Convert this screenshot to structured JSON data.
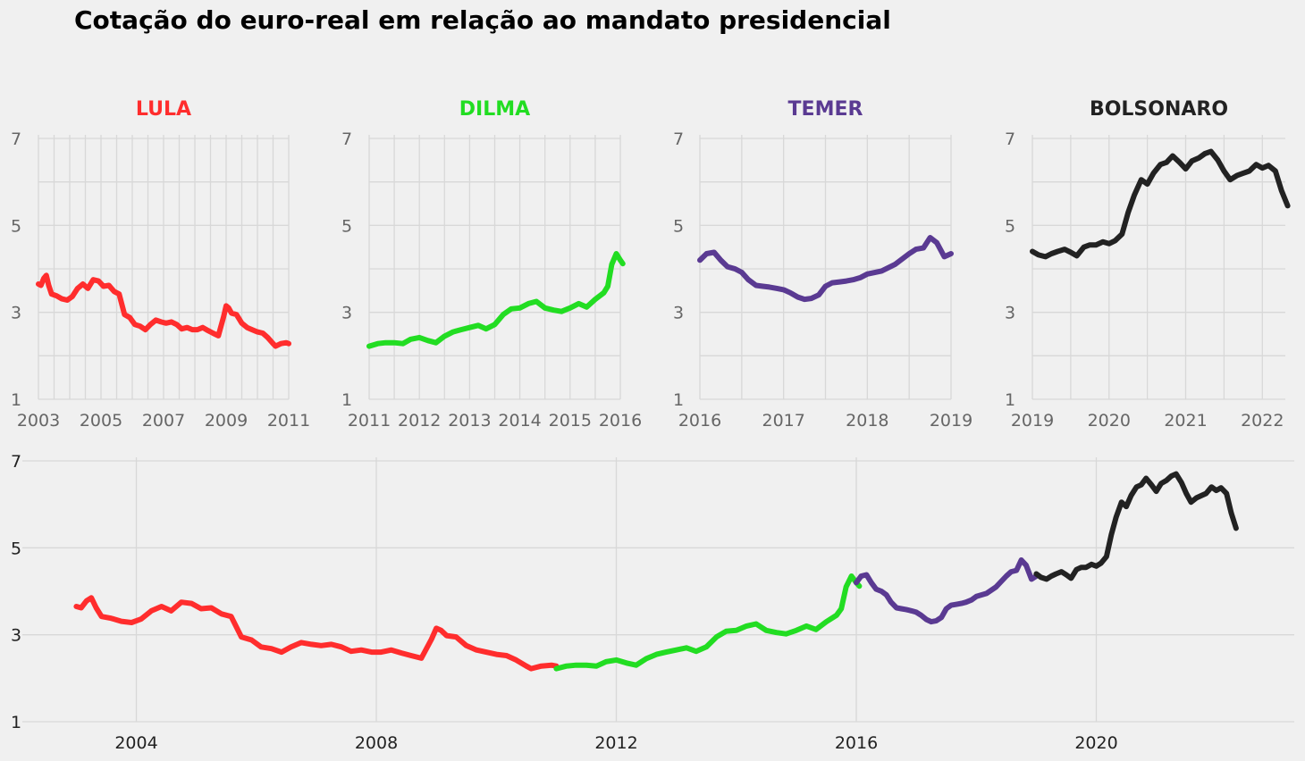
{
  "chart_data": {
    "type": "line",
    "title": "Cotação do euro-real em relação ao mandato presidencial",
    "ylim": [
      1,
      7
    ],
    "yticks": [
      1,
      3,
      5,
      7
    ],
    "grid": true,
    "series": [
      {
        "name": "LULA",
        "color": "#ff2d2d",
        "xlim": [
          2003,
          2011
        ],
        "xticks": [
          2003,
          2005,
          2007,
          2009,
          2011
        ],
        "points": [
          [
            2003.0,
            3.65
          ],
          [
            2003.08,
            3.62
          ],
          [
            2003.17,
            3.78
          ],
          [
            2003.25,
            3.85
          ],
          [
            2003.33,
            3.62
          ],
          [
            2003.42,
            3.42
          ],
          [
            2003.58,
            3.38
          ],
          [
            2003.75,
            3.31
          ],
          [
            2003.92,
            3.28
          ],
          [
            2004.08,
            3.36
          ],
          [
            2004.25,
            3.55
          ],
          [
            2004.42,
            3.65
          ],
          [
            2004.58,
            3.55
          ],
          [
            2004.75,
            3.75
          ],
          [
            2004.92,
            3.72
          ],
          [
            2005.08,
            3.6
          ],
          [
            2005.25,
            3.62
          ],
          [
            2005.42,
            3.48
          ],
          [
            2005.58,
            3.42
          ],
          [
            2005.75,
            2.95
          ],
          [
            2005.92,
            2.88
          ],
          [
            2006.08,
            2.72
          ],
          [
            2006.25,
            2.68
          ],
          [
            2006.42,
            2.6
          ],
          [
            2006.58,
            2.72
          ],
          [
            2006.75,
            2.82
          ],
          [
            2006.92,
            2.78
          ],
          [
            2007.08,
            2.75
          ],
          [
            2007.25,
            2.78
          ],
          [
            2007.42,
            2.72
          ],
          [
            2007.58,
            2.62
          ],
          [
            2007.75,
            2.65
          ],
          [
            2007.92,
            2.6
          ],
          [
            2008.08,
            2.6
          ],
          [
            2008.25,
            2.65
          ],
          [
            2008.42,
            2.58
          ],
          [
            2008.58,
            2.52
          ],
          [
            2008.75,
            2.46
          ],
          [
            2008.92,
            2.9
          ],
          [
            2009.0,
            3.15
          ],
          [
            2009.08,
            3.1
          ],
          [
            2009.17,
            2.98
          ],
          [
            2009.33,
            2.95
          ],
          [
            2009.5,
            2.75
          ],
          [
            2009.67,
            2.65
          ],
          [
            2009.83,
            2.6
          ],
          [
            2010.0,
            2.55
          ],
          [
            2010.17,
            2.52
          ],
          [
            2010.33,
            2.42
          ],
          [
            2010.5,
            2.28
          ],
          [
            2010.58,
            2.22
          ],
          [
            2010.75,
            2.28
          ],
          [
            2010.92,
            2.3
          ],
          [
            2011.0,
            2.28
          ]
        ]
      },
      {
        "name": "DILMA",
        "color": "#22dd22",
        "xlim": [
          2011,
          2016
        ],
        "xticks": [
          2011,
          2012,
          2013,
          2014,
          2015,
          2016
        ],
        "points": [
          [
            2011.0,
            2.22
          ],
          [
            2011.17,
            2.28
          ],
          [
            2011.33,
            2.3
          ],
          [
            2011.5,
            2.3
          ],
          [
            2011.67,
            2.28
          ],
          [
            2011.83,
            2.38
          ],
          [
            2012.0,
            2.42
          ],
          [
            2012.17,
            2.35
          ],
          [
            2012.33,
            2.3
          ],
          [
            2012.5,
            2.45
          ],
          [
            2012.67,
            2.55
          ],
          [
            2012.83,
            2.6
          ],
          [
            2013.0,
            2.65
          ],
          [
            2013.17,
            2.7
          ],
          [
            2013.33,
            2.62
          ],
          [
            2013.5,
            2.72
          ],
          [
            2013.67,
            2.95
          ],
          [
            2013.83,
            3.08
          ],
          [
            2014.0,
            3.1
          ],
          [
            2014.17,
            3.2
          ],
          [
            2014.33,
            3.25
          ],
          [
            2014.5,
            3.1
          ],
          [
            2014.67,
            3.05
          ],
          [
            2014.83,
            3.02
          ],
          [
            2015.0,
            3.1
          ],
          [
            2015.17,
            3.2
          ],
          [
            2015.33,
            3.12
          ],
          [
            2015.5,
            3.3
          ],
          [
            2015.67,
            3.45
          ],
          [
            2015.75,
            3.6
          ],
          [
            2015.83,
            4.1
          ],
          [
            2015.92,
            4.35
          ],
          [
            2016.0,
            4.2
          ],
          [
            2016.05,
            4.12
          ]
        ]
      },
      {
        "name": "TEMER",
        "color": "#5a3a92",
        "xlim": [
          2016,
          2019
        ],
        "xticks": [
          2016,
          2017,
          2018,
          2019
        ],
        "points": [
          [
            2016.0,
            4.2
          ],
          [
            2016.08,
            4.35
          ],
          [
            2016.17,
            4.38
          ],
          [
            2016.25,
            4.2
          ],
          [
            2016.33,
            4.05
          ],
          [
            2016.42,
            4.0
          ],
          [
            2016.5,
            3.92
          ],
          [
            2016.58,
            3.75
          ],
          [
            2016.67,
            3.62
          ],
          [
            2016.75,
            3.6
          ],
          [
            2016.83,
            3.58
          ],
          [
            2016.92,
            3.55
          ],
          [
            2017.0,
            3.52
          ],
          [
            2017.08,
            3.45
          ],
          [
            2017.17,
            3.35
          ],
          [
            2017.25,
            3.3
          ],
          [
            2017.33,
            3.32
          ],
          [
            2017.42,
            3.4
          ],
          [
            2017.5,
            3.6
          ],
          [
            2017.58,
            3.68
          ],
          [
            2017.67,
            3.7
          ],
          [
            2017.75,
            3.72
          ],
          [
            2017.83,
            3.75
          ],
          [
            2017.92,
            3.8
          ],
          [
            2018.0,
            3.88
          ],
          [
            2018.17,
            3.95
          ],
          [
            2018.33,
            4.1
          ],
          [
            2018.5,
            4.35
          ],
          [
            2018.58,
            4.45
          ],
          [
            2018.67,
            4.48
          ],
          [
            2018.75,
            4.72
          ],
          [
            2018.83,
            4.6
          ],
          [
            2018.92,
            4.28
          ],
          [
            2019.0,
            4.35
          ]
        ]
      },
      {
        "name": "BOLSONARO",
        "color": "#222222",
        "xlim": [
          2019,
          2022.3
        ],
        "xticks": [
          2019,
          2020,
          2021,
          2022
        ],
        "points": [
          [
            2019.0,
            4.4
          ],
          [
            2019.08,
            4.32
          ],
          [
            2019.17,
            4.28
          ],
          [
            2019.25,
            4.35
          ],
          [
            2019.33,
            4.4
          ],
          [
            2019.42,
            4.45
          ],
          [
            2019.5,
            4.38
          ],
          [
            2019.58,
            4.3
          ],
          [
            2019.67,
            4.5
          ],
          [
            2019.75,
            4.55
          ],
          [
            2019.83,
            4.55
          ],
          [
            2019.92,
            4.62
          ],
          [
            2020.0,
            4.58
          ],
          [
            2020.08,
            4.65
          ],
          [
            2020.17,
            4.8
          ],
          [
            2020.25,
            5.3
          ],
          [
            2020.33,
            5.7
          ],
          [
            2020.42,
            6.05
          ],
          [
            2020.5,
            5.95
          ],
          [
            2020.58,
            6.2
          ],
          [
            2020.67,
            6.4
          ],
          [
            2020.75,
            6.45
          ],
          [
            2020.83,
            6.6
          ],
          [
            2020.92,
            6.45
          ],
          [
            2021.0,
            6.3
          ],
          [
            2021.08,
            6.48
          ],
          [
            2021.17,
            6.55
          ],
          [
            2021.25,
            6.65
          ],
          [
            2021.33,
            6.7
          ],
          [
            2021.42,
            6.5
          ],
          [
            2021.5,
            6.25
          ],
          [
            2021.58,
            6.05
          ],
          [
            2021.67,
            6.15
          ],
          [
            2021.75,
            6.2
          ],
          [
            2021.83,
            6.25
          ],
          [
            2021.92,
            6.4
          ],
          [
            2022.0,
            6.32
          ],
          [
            2022.08,
            6.38
          ],
          [
            2022.17,
            6.25
          ],
          [
            2022.25,
            5.8
          ],
          [
            2022.33,
            5.45
          ]
        ]
      }
    ],
    "overview": {
      "xlim": [
        2002.1,
        2023.3
      ],
      "xticks": [
        2004,
        2008,
        2012,
        2016,
        2020
      ]
    }
  }
}
